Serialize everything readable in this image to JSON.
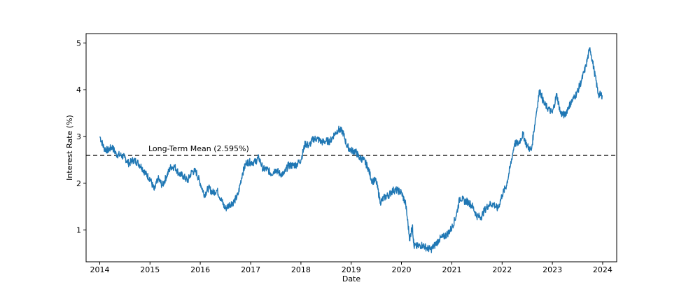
{
  "chart_data": {
    "type": "line",
    "title": "",
    "xlabel": "Date",
    "ylabel": "Interest Rate (%)",
    "xlim": [
      "2013-09-24",
      "2024-04-12"
    ],
    "ylim": [
      0.32,
      5.2
    ],
    "grid": false,
    "x_ticks": [
      "2014",
      "2015",
      "2016",
      "2017",
      "2018",
      "2019",
      "2020",
      "2021",
      "2022",
      "2023",
      "2024"
    ],
    "y_ticks": [
      "1",
      "2",
      "3",
      "4",
      "5"
    ],
    "y_tick_values": [
      1,
      2,
      3,
      4,
      5
    ],
    "series": [
      {
        "color": "#1f77b4",
        "points": [
          [
            "2014-01-02",
            3.0
          ],
          [
            "2014-02-01",
            2.75
          ],
          [
            "2014-03-01",
            2.7
          ],
          [
            "2014-04-01",
            2.78
          ],
          [
            "2014-05-01",
            2.62
          ],
          [
            "2014-06-01",
            2.6
          ],
          [
            "2014-07-01",
            2.55
          ],
          [
            "2014-08-01",
            2.42
          ],
          [
            "2014-09-01",
            2.5
          ],
          [
            "2014-10-01",
            2.45
          ],
          [
            "2014-11-01",
            2.35
          ],
          [
            "2014-12-01",
            2.2
          ],
          [
            "2015-01-01",
            2.1
          ],
          [
            "2015-02-01",
            1.85
          ],
          [
            "2015-03-01",
            2.1
          ],
          [
            "2015-04-01",
            1.95
          ],
          [
            "2015-05-01",
            2.15
          ],
          [
            "2015-06-01",
            2.35
          ],
          [
            "2015-07-01",
            2.35
          ],
          [
            "2015-08-01",
            2.2
          ],
          [
            "2015-09-01",
            2.15
          ],
          [
            "2015-10-01",
            2.05
          ],
          [
            "2015-11-01",
            2.25
          ],
          [
            "2015-12-01",
            2.25
          ],
          [
            "2016-01-01",
            2.0
          ],
          [
            "2016-02-01",
            1.75
          ],
          [
            "2016-03-01",
            1.9
          ],
          [
            "2016-04-01",
            1.8
          ],
          [
            "2016-05-01",
            1.85
          ],
          [
            "2016-06-01",
            1.65
          ],
          [
            "2016-07-01",
            1.45
          ],
          [
            "2016-08-01",
            1.55
          ],
          [
            "2016-09-01",
            1.6
          ],
          [
            "2016-10-01",
            1.75
          ],
          [
            "2016-11-01",
            2.2
          ],
          [
            "2016-12-01",
            2.45
          ],
          [
            "2017-01-01",
            2.45
          ],
          [
            "2017-02-01",
            2.45
          ],
          [
            "2017-03-01",
            2.55
          ],
          [
            "2017-04-01",
            2.3
          ],
          [
            "2017-05-01",
            2.3
          ],
          [
            "2017-06-01",
            2.2
          ],
          [
            "2017-07-01",
            2.3
          ],
          [
            "2017-08-01",
            2.2
          ],
          [
            "2017-09-01",
            2.2
          ],
          [
            "2017-10-01",
            2.38
          ],
          [
            "2017-11-01",
            2.38
          ],
          [
            "2017-12-01",
            2.4
          ],
          [
            "2018-01-01",
            2.5
          ],
          [
            "2018-02-01",
            2.85
          ],
          [
            "2018-03-01",
            2.8
          ],
          [
            "2018-04-01",
            2.95
          ],
          [
            "2018-05-01",
            2.95
          ],
          [
            "2018-06-01",
            2.88
          ],
          [
            "2018-07-01",
            2.9
          ],
          [
            "2018-08-01",
            2.9
          ],
          [
            "2018-09-01",
            3.05
          ],
          [
            "2018-10-01",
            3.15
          ],
          [
            "2018-11-01",
            3.1
          ],
          [
            "2018-12-01",
            2.8
          ],
          [
            "2019-01-01",
            2.7
          ],
          [
            "2019-02-01",
            2.68
          ],
          [
            "2019-03-01",
            2.55
          ],
          [
            "2019-04-01",
            2.5
          ],
          [
            "2019-05-01",
            2.35
          ],
          [
            "2019-06-01",
            2.05
          ],
          [
            "2019-07-01",
            2.05
          ],
          [
            "2019-08-01",
            1.6
          ],
          [
            "2019-09-01",
            1.7
          ],
          [
            "2019-10-01",
            1.75
          ],
          [
            "2019-11-01",
            1.85
          ],
          [
            "2019-12-01",
            1.85
          ],
          [
            "2020-01-01",
            1.8
          ],
          [
            "2020-02-01",
            1.55
          ],
          [
            "2020-03-01",
            0.8
          ],
          [
            "2020-03-20",
            1.1
          ],
          [
            "2020-04-01",
            0.65
          ],
          [
            "2020-05-01",
            0.65
          ],
          [
            "2020-06-01",
            0.68
          ],
          [
            "2020-07-01",
            0.62
          ],
          [
            "2020-08-01",
            0.58
          ],
          [
            "2020-09-01",
            0.68
          ],
          [
            "2020-10-01",
            0.8
          ],
          [
            "2020-11-01",
            0.85
          ],
          [
            "2020-12-01",
            0.92
          ],
          [
            "2021-01-01",
            1.05
          ],
          [
            "2021-02-01",
            1.3
          ],
          [
            "2021-03-01",
            1.7
          ],
          [
            "2021-04-01",
            1.62
          ],
          [
            "2021-05-01",
            1.6
          ],
          [
            "2021-06-01",
            1.5
          ],
          [
            "2021-07-01",
            1.3
          ],
          [
            "2021-08-01",
            1.28
          ],
          [
            "2021-09-01",
            1.45
          ],
          [
            "2021-10-01",
            1.55
          ],
          [
            "2021-11-01",
            1.55
          ],
          [
            "2021-12-01",
            1.45
          ],
          [
            "2022-01-01",
            1.75
          ],
          [
            "2022-02-01",
            1.95
          ],
          [
            "2022-03-01",
            2.35
          ],
          [
            "2022-04-01",
            2.85
          ],
          [
            "2022-05-01",
            2.85
          ],
          [
            "2022-06-01",
            3.05
          ],
          [
            "2022-07-01",
            2.8
          ],
          [
            "2022-08-01",
            2.7
          ],
          [
            "2022-09-01",
            3.4
          ],
          [
            "2022-10-01",
            4.0
          ],
          [
            "2022-11-01",
            3.7
          ],
          [
            "2022-12-01",
            3.6
          ],
          [
            "2023-01-01",
            3.5
          ],
          [
            "2023-02-01",
            3.9
          ],
          [
            "2023-03-01",
            3.5
          ],
          [
            "2023-04-01",
            3.45
          ],
          [
            "2023-05-01",
            3.65
          ],
          [
            "2023-06-01",
            3.8
          ],
          [
            "2023-07-01",
            3.95
          ],
          [
            "2023-08-01",
            4.2
          ],
          [
            "2023-09-01",
            4.5
          ],
          [
            "2023-10-01",
            4.9
          ],
          [
            "2023-11-01",
            4.4
          ],
          [
            "2023-12-01",
            3.9
          ],
          [
            "2023-12-29",
            3.88
          ]
        ]
      }
    ],
    "reference_line": {
      "y": 2.595,
      "style": "dashed",
      "color": "#000000",
      "label": "Long-Term Mean (2.595%)"
    }
  }
}
